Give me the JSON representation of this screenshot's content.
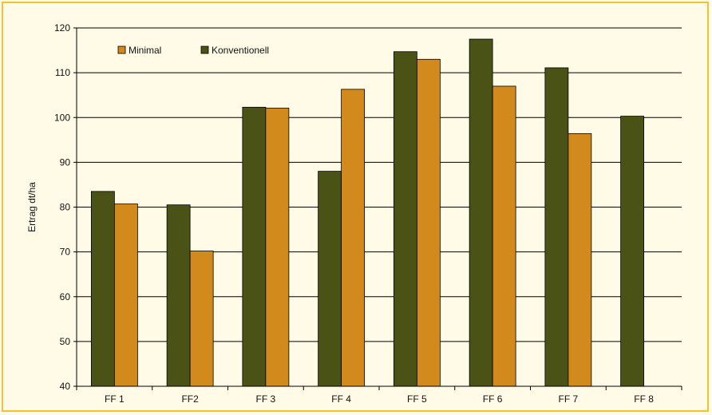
{
  "chart_data": {
    "type": "bar",
    "ylabel": "Ertrag dt/ha",
    "ylim": [
      40,
      120
    ],
    "yticks": [
      40,
      50,
      60,
      70,
      80,
      90,
      100,
      110,
      120
    ],
    "categories": [
      "FF 1",
      "FF2",
      "FF 3",
      "FF 4",
      "FF 5",
      "FF 6",
      "FF 7",
      "FF 8"
    ],
    "series": [
      {
        "name": "Konventionell",
        "color": "#4b5216",
        "values": [
          83.5,
          80.5,
          102.3,
          88.0,
          114.7,
          117.5,
          111.1,
          100.3
        ]
      },
      {
        "name": "Minimal",
        "color": "#d38a1c",
        "values": [
          80.7,
          70.2,
          102.1,
          106.3,
          113.0,
          107.0,
          96.4,
          null
        ]
      }
    ],
    "legend": [
      {
        "name": "Minimal",
        "color": "#d38a1c"
      },
      {
        "name": "Konventionell",
        "color": "#4b5216"
      }
    ],
    "legend_position": "top-left",
    "grid": true
  }
}
